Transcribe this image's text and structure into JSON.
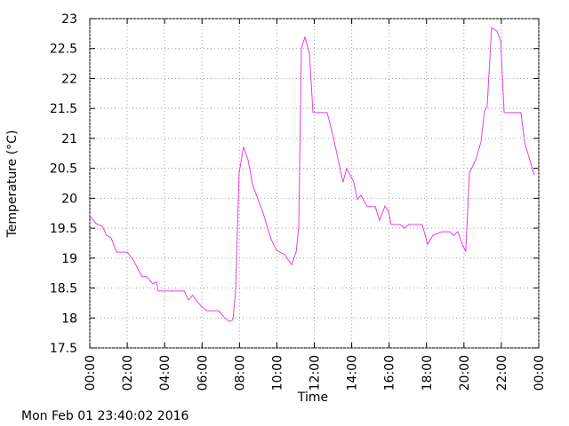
{
  "chart_data": {
    "type": "line",
    "xlabel": "Time",
    "ylabel": "Temperature (°C)",
    "footer": "Mon Feb 01 23:40:02 2016",
    "xlim": [
      0,
      24
    ],
    "ylim": [
      17.5,
      23
    ],
    "xticks": [
      {
        "value": 0,
        "label": "00:00"
      },
      {
        "value": 2,
        "label": "02:00"
      },
      {
        "value": 4,
        "label": "04:00"
      },
      {
        "value": 6,
        "label": "06:00"
      },
      {
        "value": 8,
        "label": "08:00"
      },
      {
        "value": 10,
        "label": "10:00"
      },
      {
        "value": 12,
        "label": "12:00"
      },
      {
        "value": 14,
        "label": "14:00"
      },
      {
        "value": 16,
        "label": "16:00"
      },
      {
        "value": 18,
        "label": "18:00"
      },
      {
        "value": 20,
        "label": "20:00"
      },
      {
        "value": 22,
        "label": "22:00"
      },
      {
        "value": 24,
        "label": "00:00"
      }
    ],
    "yticks": [
      17.5,
      18,
      18.5,
      19,
      19.5,
      20,
      20.5,
      21,
      21.5,
      22,
      22.5,
      23
    ],
    "grid": true,
    "series": [
      {
        "color": "#e040e0",
        "x": [
          0,
          0.33,
          0.67,
          0.9,
          1.14,
          1.43,
          2.0,
          2.33,
          2.57,
          2.8,
          3.04,
          3.37,
          3.56,
          3.66,
          5.04,
          5.28,
          5.51,
          5.75,
          6.04,
          6.27,
          6.89,
          7.22,
          7.46,
          7.65,
          7.79,
          7.98,
          8.22,
          8.46,
          8.7,
          8.99,
          9.27,
          9.46,
          9.7,
          9.98,
          10.41,
          10.79,
          11.03,
          11.17,
          11.31,
          11.5,
          11.74,
          11.93,
          12.69,
          13.02,
          13.26,
          13.54,
          13.73,
          14.11,
          14.3,
          14.49,
          14.83,
          15.26,
          15.49,
          15.78,
          15.97,
          16.11,
          16.59,
          16.82,
          17.06,
          17.77,
          18.06,
          18.34,
          18.82,
          19.25,
          19.44,
          19.68,
          19.91,
          20.1,
          20.29,
          20.63,
          20.91,
          21.1,
          21.24,
          21.48,
          21.77,
          21.96,
          22.15,
          23.05,
          23.24,
          23.52,
          23.76
        ],
        "values": [
          19.71,
          19.58,
          19.53,
          19.38,
          19.34,
          19.1,
          19.1,
          18.97,
          18.82,
          18.69,
          18.69,
          18.57,
          18.6,
          18.45,
          18.45,
          18.3,
          18.38,
          18.27,
          18.17,
          18.12,
          18.12,
          18.0,
          17.94,
          17.97,
          18.42,
          20.42,
          20.86,
          20.64,
          20.23,
          19.98,
          19.75,
          19.55,
          19.31,
          19.13,
          19.06,
          18.89,
          19.1,
          19.53,
          22.5,
          22.69,
          22.42,
          21.43,
          21.43,
          21.02,
          20.67,
          20.27,
          20.5,
          20.27,
          19.98,
          20.05,
          19.86,
          19.86,
          19.63,
          19.87,
          19.78,
          19.56,
          19.56,
          19.5,
          19.56,
          19.56,
          19.23,
          19.38,
          19.44,
          19.44,
          19.38,
          19.44,
          19.23,
          19.11,
          20.42,
          20.64,
          20.94,
          21.46,
          21.53,
          22.85,
          22.79,
          22.64,
          21.43,
          21.43,
          20.94,
          20.64,
          20.39
        ]
      }
    ]
  }
}
